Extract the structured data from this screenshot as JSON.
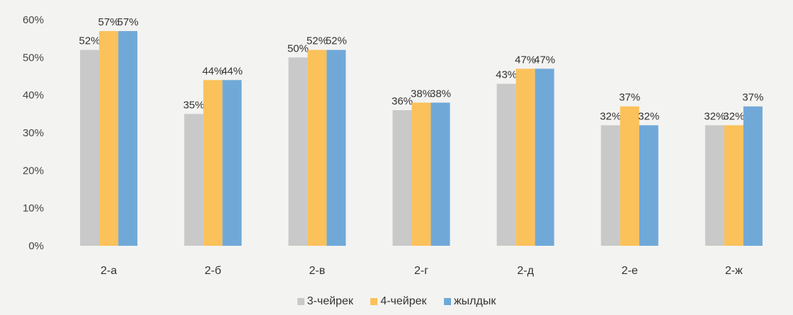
{
  "chart_data": {
    "type": "bar",
    "categories": [
      "2-а",
      "2-б",
      "2-в",
      "2-г",
      "2-д",
      "2-е",
      "2-ж"
    ],
    "series": [
      {
        "name": "3-чейрек",
        "color": "#c9c9c9",
        "values": [
          52,
          35,
          50,
          36,
          43,
          32,
          32
        ],
        "labels": [
          "52%",
          "35%",
          "50%",
          "36%",
          "43%",
          "32%",
          "32%"
        ]
      },
      {
        "name": "4-чейрек",
        "color": "#fbc15a",
        "values": [
          57,
          44,
          52,
          38,
          47,
          37,
          32
        ],
        "labels": [
          "57%",
          "44%",
          "52%",
          "38%",
          "47%",
          "37%",
          "32%"
        ]
      },
      {
        "name": "жылдык",
        "color": "#70a9d8",
        "values": [
          57,
          44,
          52,
          38,
          47,
          32,
          37
        ],
        "labels": [
          "57%",
          "44%",
          "52%",
          "38%",
          "47%",
          "32%",
          "37%"
        ]
      }
    ],
    "ylim": [
      0,
      60
    ],
    "yticks": [
      "0%",
      "10%",
      "20%",
      "30%",
      "40%",
      "50%",
      "60%"
    ],
    "grid": false,
    "legend": "bottom"
  }
}
